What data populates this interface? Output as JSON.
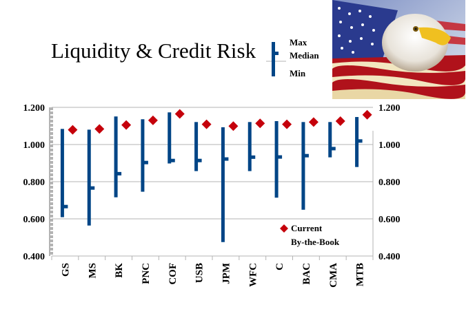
{
  "chart_data": {
    "type": "range",
    "title": "Liquidity & Credit Risk",
    "categories": [
      "GS",
      "MS",
      "BK",
      "PNC",
      "COF",
      "USB",
      "JPM",
      "WFC",
      "C",
      "BAC",
      "CMA",
      "MTB"
    ],
    "series": [
      {
        "name": "Max",
        "values": [
          1.084,
          1.08,
          1.151,
          1.136,
          1.173,
          1.121,
          1.093,
          1.121,
          1.126,
          1.121,
          1.121,
          1.148
        ]
      },
      {
        "name": "Median",
        "values": [
          0.666,
          0.766,
          0.843,
          0.903,
          0.914,
          0.914,
          0.922,
          0.932,
          0.933,
          0.94,
          0.978,
          1.019
        ]
      },
      {
        "name": "Min",
        "values": [
          0.609,
          0.564,
          0.716,
          0.746,
          0.898,
          0.857,
          0.475,
          0.857,
          0.714,
          0.649,
          0.931,
          0.879
        ]
      },
      {
        "name": "Current By-the-Book",
        "values": [
          1.079,
          1.084,
          1.105,
          1.13,
          1.165,
          1.109,
          1.099,
          1.114,
          1.109,
          1.121,
          1.126,
          1.16
        ]
      }
    ],
    "ylim": [
      0.4,
      1.2
    ],
    "yticks": [
      "0.400",
      "0.600",
      "0.800",
      "1.000",
      "1.200"
    ],
    "y2ticks": [
      "0.400",
      "0.600",
      "0.800",
      "1.000",
      "1.200"
    ],
    "grid": true,
    "legend": {
      "range_key": {
        "max": "Max",
        "median": "Median",
        "min": "Min",
        "placement": "top-right of title"
      },
      "current": {
        "line1": "Current",
        "line2": "By-the-Book",
        "placement": "bottom-right"
      }
    },
    "colors": {
      "range": "#004586",
      "current": "#c5000b",
      "grid": "#b3b3b3",
      "left_axis": "#b3b3b3"
    }
  },
  "decor": {
    "photo": "bald-eagle-american-flag"
  }
}
